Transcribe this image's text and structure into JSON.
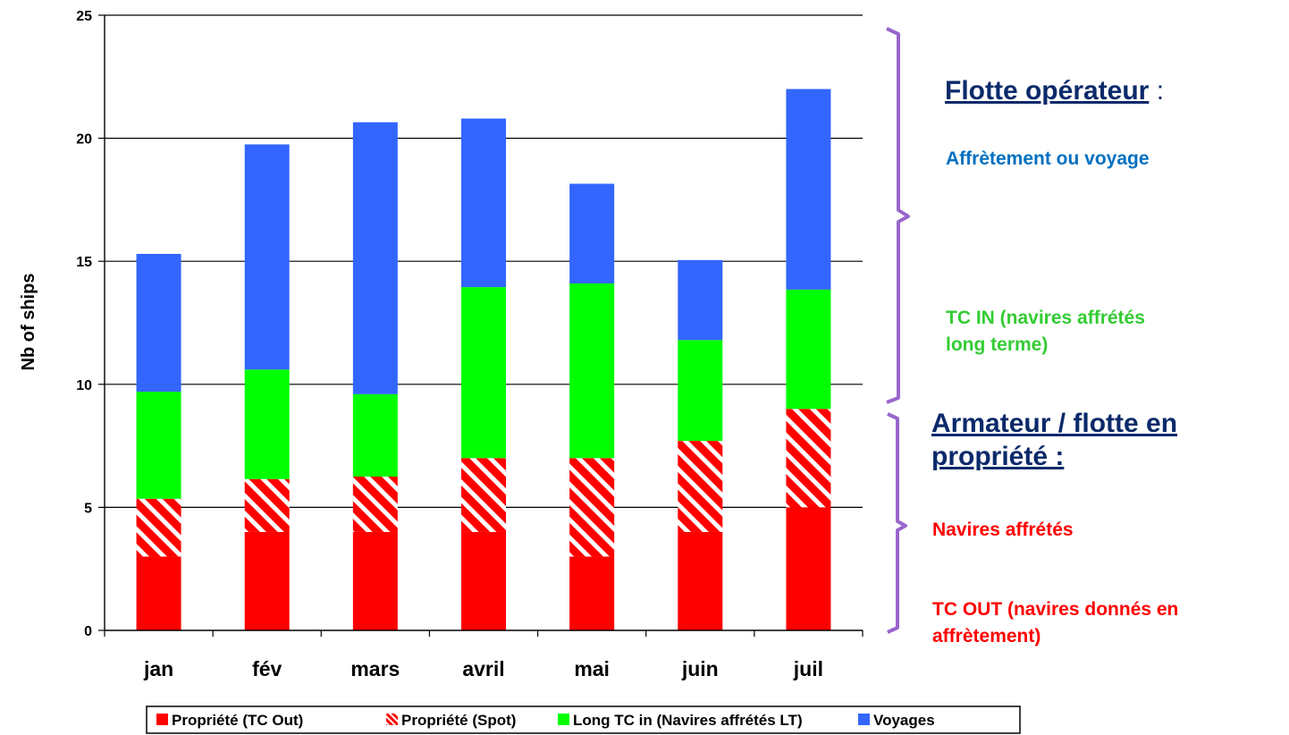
{
  "chart_data": {
    "type": "bar",
    "stacked": true,
    "categories": [
      "jan",
      "fév",
      "mars",
      "avril",
      "mai",
      "juin",
      "juil"
    ],
    "series": [
      {
        "name": "Propriété (TC Out)",
        "color": "#ff0000",
        "pattern": "solid",
        "values": [
          3,
          4,
          4,
          4,
          3,
          4,
          5
        ]
      },
      {
        "name": "Propriété (Spot)",
        "color": "#ff0000",
        "pattern": "hatched",
        "values": [
          2.35,
          2.15,
          2.25,
          3,
          4,
          3.7,
          4
        ]
      },
      {
        "name": "Long TC in (Navires affrétés LT)",
        "color": "#00ff00",
        "pattern": "solid",
        "values": [
          4.35,
          4.45,
          3.35,
          6.95,
          7.1,
          4.1,
          4.85
        ]
      },
      {
        "name": "Voyages",
        "color": "#3366ff",
        "pattern": "solid",
        "values": [
          5.6,
          9.15,
          11.05,
          6.85,
          4.05,
          3.25,
          8.15
        ]
      }
    ],
    "ylabel": "Nb of ships",
    "xlabel": "",
    "ylim": [
      0,
      25
    ],
    "yticks": [
      0,
      5,
      10,
      15,
      20,
      25
    ],
    "grid": true,
    "legend_position": "bottom"
  },
  "annotations": {
    "operator_heading": "Flotte opérateur",
    "operator_colon": " :",
    "operator_voyage": "Affrètement ou voyage",
    "operator_tcin_line1": "TC IN (navires affrétés",
    "operator_tcin_line2": "long terme)",
    "owner_heading_line1": "Armateur / flotte en",
    "owner_heading_line2": "propriété :",
    "owner_chartered": "Navires affrétés",
    "owner_tcout_line1": "TC OUT (navires donnés en",
    "owner_tcout_line2": "affrètement)",
    "bracket_color": "#9966cc",
    "voyage_color": "#0070c0",
    "tcin_color": "#33cc33",
    "red_color": "#ff0000"
  }
}
